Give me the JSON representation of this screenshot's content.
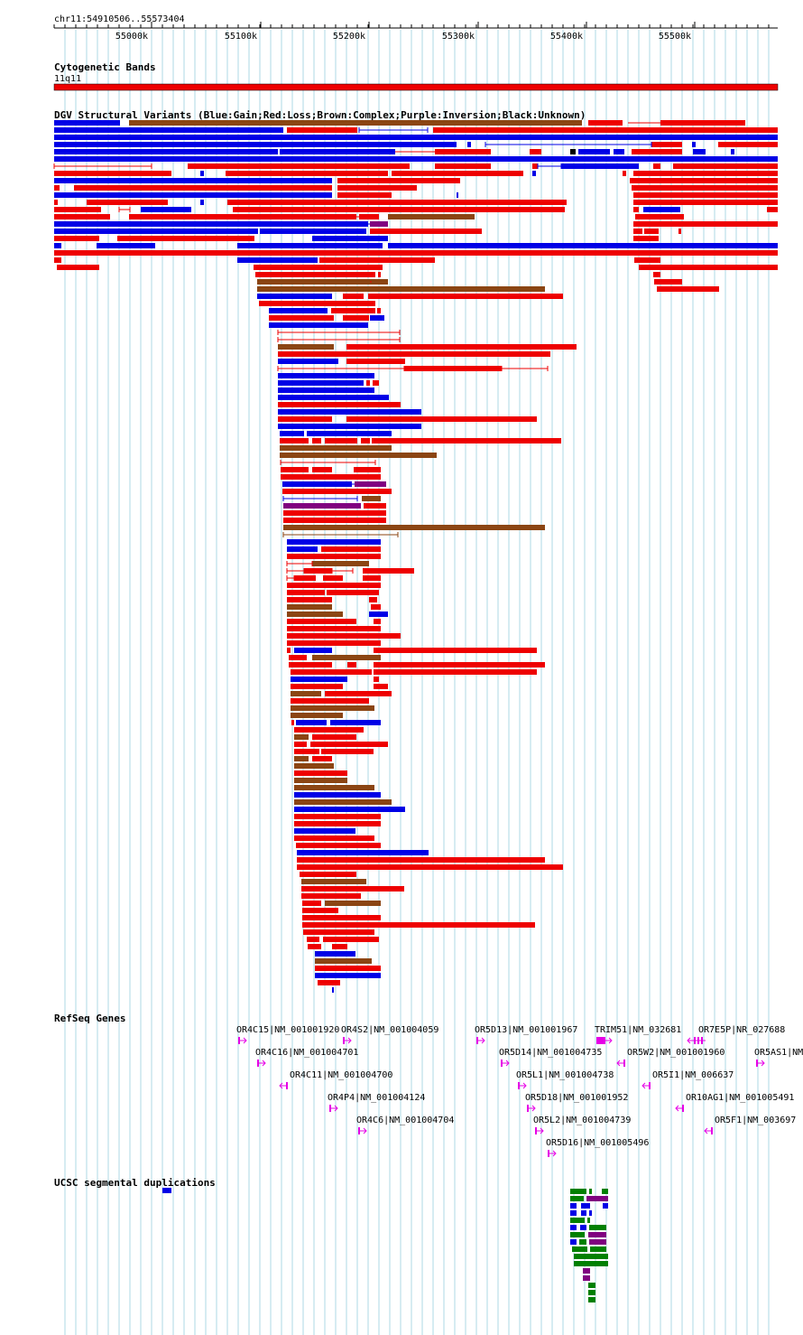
{
  "region_label": "chr11:54910506..55573404",
  "ruler": {
    "ticks": [
      "55000k",
      "55100k",
      "55200k",
      "55300k",
      "55400k",
      "55500k"
    ]
  },
  "tracks": {
    "cyto": {
      "title": "Cytogenetic Bands",
      "band_label": "11q11"
    },
    "dgv": {
      "title": "DGV Structural Variants (Blue:Gain;Red:Loss;Brown:Complex;Purple:Inversion;Black:Unknown)"
    },
    "refseq": {
      "title": "RefSeq Genes"
    },
    "segdup": {
      "title": "UCSC segmental duplications"
    }
  },
  "colors": {
    "gain": "#0000e6",
    "loss": "#ee0000",
    "complex": "#8b4513",
    "inversion": "#800080",
    "unknown": "#000000",
    "gene": "#e600e6",
    "segdup_green": "#008000",
    "segdup_purple": "#800080",
    "segdup_blue": "#0000e6",
    "gridline": "#add8e6",
    "cyto_band": "#ee0000"
  },
  "genes": [
    {
      "name": "OR4C15|NM_001001920",
      "strand": "+"
    },
    {
      "name": "OR4S2|NM_001004059",
      "strand": "+"
    },
    {
      "name": "OR5D13|NM_001001967",
      "strand": "+"
    },
    {
      "name": "TRIM51|NM_032681",
      "strand": "+"
    },
    {
      "name": "OR7E5P|NR_027688",
      "strand": "-"
    },
    {
      "name": "OR4C16|NM_001004701",
      "strand": "+"
    },
    {
      "name": "OR5D14|NM_001004735",
      "strand": "+"
    },
    {
      "name": "OR5W2|NM_001001960",
      "strand": "-"
    },
    {
      "name": "OR5AS1|NM",
      "strand": "+"
    },
    {
      "name": "OR4C11|NM_001004700",
      "strand": "-"
    },
    {
      "name": "OR5L1|NM_001004738",
      "strand": "+"
    },
    {
      "name": "OR5I1|NM_006637",
      "strand": "-"
    },
    {
      "name": "OR4P4|NM_001004124",
      "strand": "+"
    },
    {
      "name": "OR5D18|NM_001001952",
      "strand": "+"
    },
    {
      "name": "OR10AG1|NM_001005491",
      "strand": "-"
    },
    {
      "name": "OR4C6|NM_001004704",
      "strand": "+"
    },
    {
      "name": "OR5L2|NM_001004739",
      "strand": "+"
    },
    {
      "name": "OR5F1|NM_003697",
      "strand": "-"
    },
    {
      "name": "OR5D16|NM_001005496",
      "strand": "+"
    }
  ]
}
